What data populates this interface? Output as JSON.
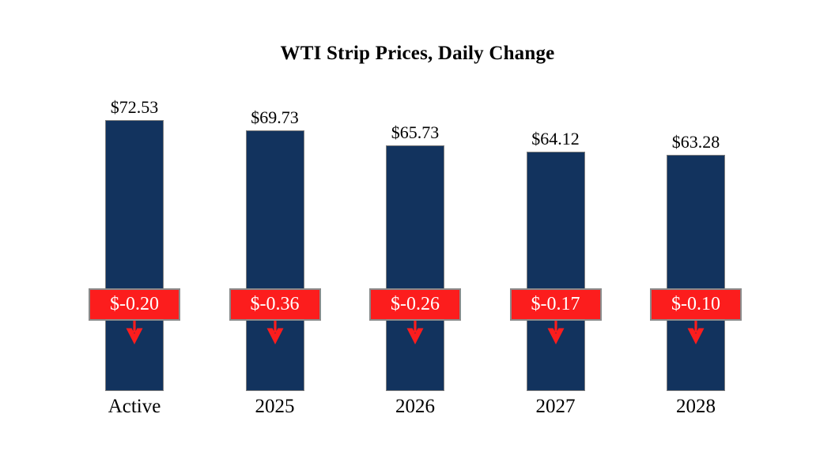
{
  "page": {
    "background": "#FFFFFF"
  },
  "chart_data": {
    "type": "bar",
    "title": "WTI Strip Prices, Daily Change",
    "categories": [
      "Active",
      "2025",
      "2026",
      "2027",
      "2028"
    ],
    "series": [
      {
        "name": "WTI Strip Price",
        "values": [
          72.53,
          69.73,
          65.73,
          64.12,
          63.28
        ],
        "labels": [
          "$72.53",
          "$69.73",
          "$65.73",
          "$64.12",
          "$63.28"
        ]
      },
      {
        "name": "Daily Change",
        "values": [
          -0.2,
          -0.36,
          -0.26,
          -0.17,
          -0.1
        ],
        "labels": [
          "$-0.20",
          "$-0.36",
          "$-0.26",
          "$-0.17",
          "$-0.10"
        ]
      }
    ],
    "ylim": [
      0,
      75
    ],
    "grid": false,
    "legend": "none",
    "axes_visible": false,
    "colors": {
      "bar_fill": "#12335E",
      "bar_border": "#7F7F7F",
      "change_box_fill": "#FC1D1D",
      "change_box_border": "#8A8A8A",
      "change_text": "#FFFFFF",
      "label_text": "#000000",
      "arrow": "#FC1D1D",
      "background": "#FFFFFF"
    }
  }
}
